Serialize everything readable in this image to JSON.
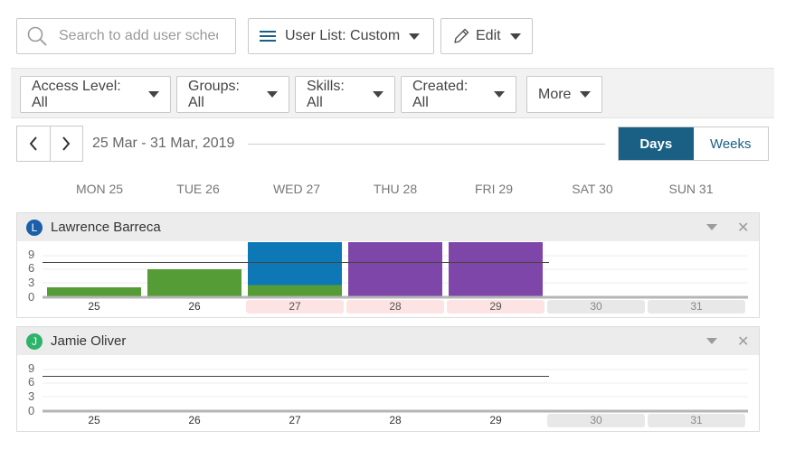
{
  "toolbar": {
    "search_placeholder": "Search to add user schedule",
    "user_list_label": "User List: Custom",
    "edit_label": "Edit"
  },
  "filters": [
    {
      "label": "Access Level: All"
    },
    {
      "label": "Groups: All"
    },
    {
      "label": "Skills: All"
    },
    {
      "label": "Created: All"
    },
    {
      "label": "More"
    }
  ],
  "calendar": {
    "date_range": "25 Mar - 31 Mar, 2019",
    "view_days": "Days",
    "view_weeks": "Weeks",
    "day_headers": [
      "MON 25",
      "TUE 26",
      "WED 27",
      "THU 28",
      "FRI 29",
      "SAT 30",
      "SUN 31"
    ]
  },
  "users": [
    {
      "initial": "L",
      "name": "Lawrence Barreca",
      "avatar_color": "#1b5faa",
      "y_ticks": [
        "9",
        "6",
        "3",
        "0"
      ],
      "day_labels": [
        "25",
        "26",
        "27",
        "28",
        "29",
        "30",
        "31"
      ],
      "day_status": [
        "normal",
        "normal",
        "warn",
        "warn",
        "warn",
        "weekend",
        "weekend"
      ],
      "target_hours": 7.5,
      "bars": [
        [
          {
            "hours": 2.0,
            "color": "#559b36"
          }
        ],
        [
          {
            "hours": 6.0,
            "color": "#559b36"
          }
        ],
        [
          {
            "hours": 2.5,
            "color": "#559b36"
          },
          {
            "hours": 9.5,
            "color": "#0d78b5"
          }
        ],
        [
          {
            "hours": 12,
            "color": "#7f46a9"
          }
        ],
        [
          {
            "hours": 12,
            "color": "#7f46a9"
          }
        ],
        [],
        []
      ]
    },
    {
      "initial": "J",
      "name": "Jamie Oliver",
      "avatar_color": "#2eb36b",
      "y_ticks": [
        "9",
        "6",
        "3",
        "0"
      ],
      "day_labels": [
        "25",
        "26",
        "27",
        "28",
        "29",
        "30",
        "31"
      ],
      "day_status": [
        "normal",
        "normal",
        "normal",
        "normal",
        "normal",
        "weekend",
        "weekend"
      ],
      "target_hours": 7.5,
      "bars": [
        [],
        [],
        [],
        [],
        [],
        [],
        []
      ]
    }
  ]
}
